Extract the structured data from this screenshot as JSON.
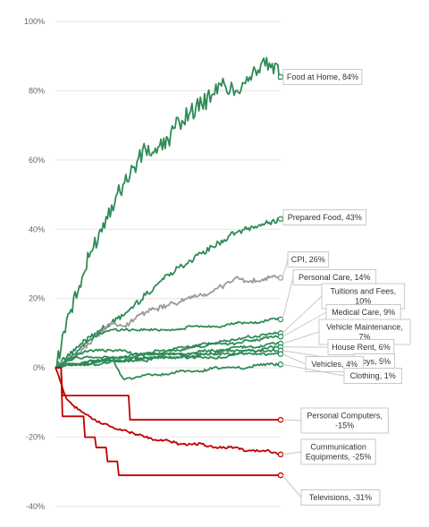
{
  "chart_data": {
    "type": "line",
    "title": "",
    "xlabel": "",
    "ylabel": "",
    "ylim": [
      -40,
      100
    ],
    "yticks": [
      100,
      80,
      60,
      40,
      20,
      0,
      -20,
      -40
    ],
    "ytick_labels": [
      "100%",
      "80%",
      "60%",
      "40%",
      "20%",
      "0%",
      "-20%",
      "-40%"
    ],
    "x": [
      0,
      4,
      8,
      12,
      16,
      20,
      24,
      28,
      32,
      36,
      40,
      44,
      48,
      52,
      56,
      60,
      64,
      68,
      72,
      76,
      80
    ],
    "grid": true,
    "colors": {
      "increase": "#2e8b57",
      "decrease": "#c00000",
      "cpi": "#999999"
    },
    "series": [
      {
        "name": "Food at Home",
        "label": "Food at Home, 84%",
        "end_value": 84,
        "color": "#2e8b57",
        "values": [
          0,
          14,
          22,
          32,
          40,
          47,
          53,
          58,
          63,
          62,
          66,
          71,
          74,
          76,
          79,
          82,
          80,
          84,
          86,
          88,
          84
        ]
      },
      {
        "name": "Prepared Food",
        "label": "Prepared Food, 43%",
        "end_value": 43,
        "color": "#2e8b57",
        "values": [
          0,
          3,
          6,
          9,
          11,
          13,
          15,
          18,
          21,
          24,
          27,
          29,
          31,
          33,
          35,
          37,
          39,
          40,
          41,
          42,
          43
        ]
      },
      {
        "name": "CPI",
        "label": "CPI, 26%",
        "end_value": 26,
        "color": "#999999",
        "values": [
          0,
          2,
          4,
          7,
          10,
          13,
          12,
          14,
          16,
          17,
          18,
          19,
          20,
          21,
          22,
          24,
          26,
          25,
          25,
          26,
          26
        ]
      },
      {
        "name": "Personal Care",
        "label": "Personal Care, 14%",
        "end_value": 14,
        "color": "#2e8b57",
        "values": [
          0,
          2,
          5,
          8,
          10,
          11,
          11,
          11,
          11,
          11,
          11,
          11,
          12,
          12,
          12,
          12,
          13,
          13,
          13,
          14,
          14
        ]
      },
      {
        "name": "Tuitions and Fees",
        "label": "Tuitions and Fees, 10%",
        "end_value": 10,
        "color": "#2e8b57",
        "values": [
          0,
          1,
          1,
          2,
          2,
          3,
          3,
          4,
          4,
          5,
          5,
          6,
          6,
          7,
          7,
          8,
          8,
          9,
          9,
          10,
          10
        ]
      },
      {
        "name": "Medical Care",
        "label": "Medical Care, 9%",
        "end_value": 9,
        "color": "#2e8b57",
        "values": [
          0,
          1,
          1,
          2,
          2,
          3,
          3,
          3,
          4,
          4,
          5,
          5,
          6,
          6,
          7,
          7,
          7,
          8,
          8,
          9,
          9
        ]
      },
      {
        "name": "Vehicle Maintenance",
        "label": "Vehicle Maintenance, 7%",
        "end_value": 7,
        "color": "#2e8b57",
        "values": [
          0,
          1,
          1,
          1,
          2,
          2,
          2,
          3,
          3,
          3,
          4,
          4,
          4,
          5,
          5,
          5,
          6,
          6,
          6,
          7,
          7
        ]
      },
      {
        "name": "House Rent",
        "label": "House Rent, 6%",
        "end_value": 6,
        "color": "#2e8b57",
        "values": [
          0,
          1,
          1,
          1,
          2,
          2,
          2,
          2,
          3,
          3,
          3,
          3,
          4,
          4,
          4,
          5,
          5,
          5,
          5,
          6,
          6
        ]
      },
      {
        "name": "Toys",
        "label": "Toys, 5%",
        "end_value": 5,
        "color": "#2e8b57",
        "values": [
          0,
          1,
          1,
          1,
          1,
          2,
          2,
          2,
          2,
          3,
          3,
          3,
          3,
          4,
          4,
          4,
          4,
          5,
          5,
          5,
          5
        ]
      },
      {
        "name": "Vehicles",
        "label": "Vehicles, 4%",
        "end_value": 4,
        "color": "#2e8b57",
        "values": [
          0,
          2,
          4,
          5,
          5,
          5,
          5,
          4,
          4,
          4,
          4,
          4,
          3,
          3,
          3,
          3,
          4,
          4,
          4,
          4,
          4
        ]
      },
      {
        "name": "Clothing",
        "label": "Clothing, 1%",
        "end_value": 1,
        "color": "#2e8b57",
        "values": [
          0,
          2,
          3,
          3,
          3,
          3,
          -3,
          -3,
          -2,
          -2,
          -2,
          -1,
          -1,
          -1,
          0,
          0,
          0,
          0,
          1,
          1,
          1
        ]
      },
      {
        "name": "Personal Computers",
        "label": "Personal Computers, -15%",
        "end_value": -15,
        "color": "#c00000",
        "values": [
          0,
          -8,
          -8,
          -8,
          -8,
          -8,
          -8,
          -15,
          -15,
          -15,
          -15,
          -15,
          -15,
          -15,
          -15,
          -15,
          -15,
          -15,
          -15,
          -15,
          -15
        ]
      },
      {
        "name": "Communication Equipments",
        "label": "Communication Equipments, -25%",
        "end_value": -25,
        "color": "#c00000",
        "values": [
          0,
          -9,
          -12,
          -14,
          -16,
          -17,
          -18,
          -19,
          -20,
          -21,
          -21,
          -22,
          -22,
          -22,
          -23,
          -23,
          -23,
          -24,
          -24,
          -24,
          -25
        ]
      },
      {
        "name": "Televisions",
        "label": "Televisions, -31%",
        "end_value": -31,
        "color": "#c00000",
        "values": [
          0,
          -14,
          -14,
          -20,
          -23,
          -27,
          -31,
          -31,
          -31,
          -31,
          -31,
          -31,
          -31,
          -31,
          -31,
          -31,
          -31,
          -31,
          -31,
          -31,
          -31
        ]
      }
    ],
    "label_lines": {
      "Tuitions and Fees": [
        "Tuitions and Fees,",
        "10%"
      ],
      "Vehicle Maintenance": [
        "Vehicle Maintenance,",
        "7%"
      ],
      "Personal Computers": [
        "Personal Computers,",
        "-15%"
      ],
      "Communication Equipments": [
        "Cummunication",
        "Equipments, -25%"
      ]
    }
  }
}
